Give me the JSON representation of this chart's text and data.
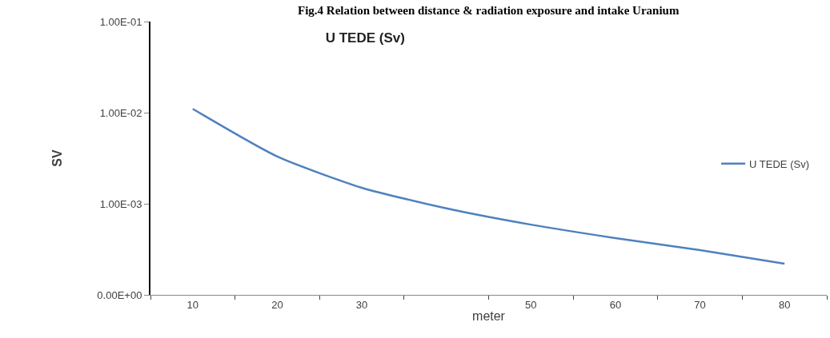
{
  "chart_data": {
    "type": "line",
    "title": "U TEDE (Sv)",
    "subtitle": "Fig.4 Relation between distance & radiation exposure and intake Uranium",
    "xlabel": "meter",
    "ylabel": "SV",
    "categories": [
      "10",
      "20",
      "30",
      null,
      "50",
      "60",
      "70",
      "80"
    ],
    "series": [
      {
        "name": "U TEDE (Sv)",
        "color": "#4f81bd",
        "values": [
          0.011,
          0.0033,
          0.0015,
          0.00089,
          0.00059,
          0.00042,
          0.00031,
          0.00022
        ]
      }
    ],
    "log": true,
    "ylim": [
      0.0001,
      0.1
    ],
    "yticks": [
      {
        "value": 0.0001,
        "label": "0.00E+00"
      },
      {
        "value": 0.001,
        "label": "1.00E-03"
      },
      {
        "value": 0.01,
        "label": "1.00E-02"
      },
      {
        "value": 0.1,
        "label": "1.00E-01"
      }
    ],
    "legend": "right",
    "marker": "none",
    "line_style": "solid"
  }
}
